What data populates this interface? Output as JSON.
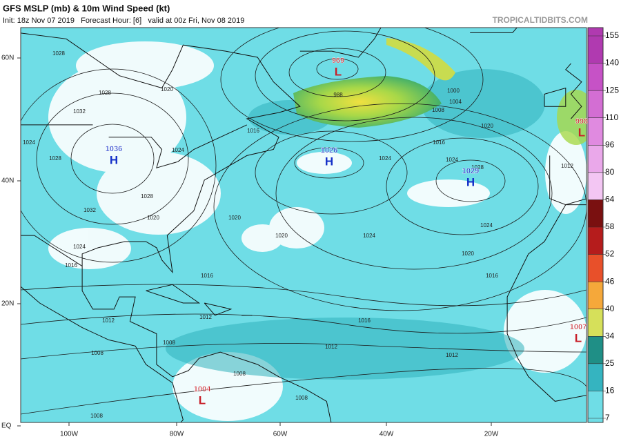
{
  "header": {
    "title": "GFS MSLP (mb) & 10m Wind Speed (kt)",
    "subtitle": "Init: 18z Nov 07 2019   Forecast Hour: [6]   valid at 00z Fri, Nov 08 2019",
    "site": "TROPICALTIDBITS.COM"
  },
  "map": {
    "lat_labels": [
      "60N",
      "40N",
      "20N",
      "EQ"
    ],
    "lon_labels": [
      "100W",
      "80W",
      "60W",
      "40W",
      "20W"
    ],
    "centers": [
      {
        "type": "H",
        "value": 1036
      },
      {
        "type": "L",
        "value": 969
      },
      {
        "type": "H",
        "value": 1026
      },
      {
        "type": "H",
        "value": 1029
      },
      {
        "type": "L",
        "value": 998
      },
      {
        "type": "L",
        "value": 1007
      },
      {
        "type": "L",
        "value": 1004
      }
    ],
    "isobar_labels": [
      1028,
      1028,
      1032,
      1024,
      1028,
      1020,
      1016,
      1024,
      1028,
      1032,
      1024,
      1020,
      1016,
      1020,
      1020,
      1024,
      1016,
      1012,
      1016,
      1012,
      1012,
      1008,
      1012,
      1008,
      1008,
      1008,
      1008,
      1024,
      1028,
      1024,
      1020,
      1016,
      1020,
      1016,
      1024,
      1008,
      1000,
      1004,
      988,
      1012
    ]
  },
  "colorbar": {
    "ticks": [
      155,
      140,
      125,
      110,
      96,
      80,
      64,
      58,
      52,
      46,
      40,
      34,
      25,
      16,
      7
    ],
    "colors": [
      "#b03ab0",
      "#c652c6",
      "#d36ed3",
      "#e08ae0",
      "#eaa8ea",
      "#f3c6f3",
      "#7a1010",
      "#b51c1c",
      "#e8502a",
      "#f5a83a",
      "#d6e05a",
      "#1f8f86",
      "#35b4c0",
      "#6fdde6"
    ]
  }
}
